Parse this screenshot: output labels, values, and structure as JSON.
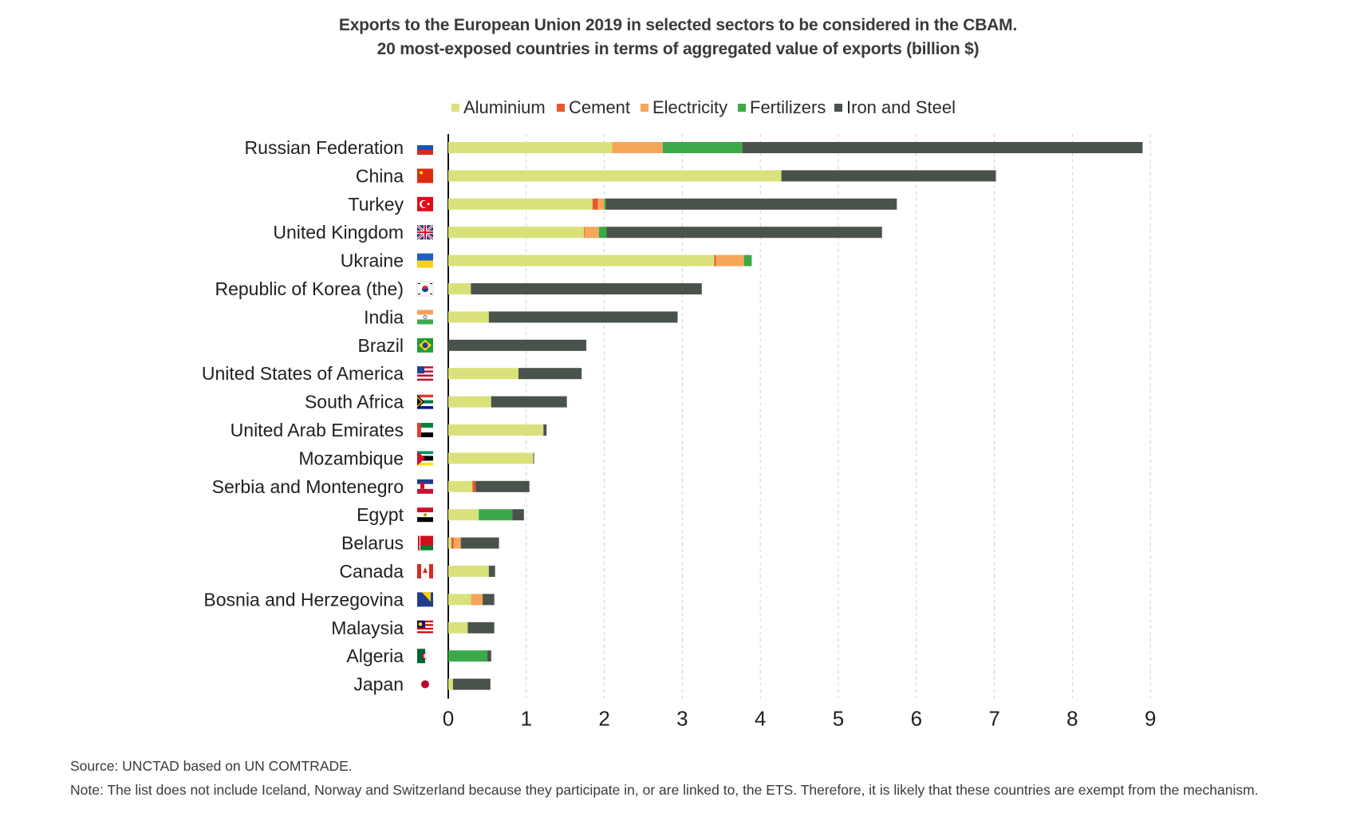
{
  "chart_data": {
    "type": "bar",
    "orientation": "horizontal",
    "stacked": true,
    "title": "Exports to the European Union 2019 in selected sectors to be considered in the CBAM.",
    "subtitle": "20 most-exposed countries in terms of aggregated value of exports (billion $)",
    "xlim": [
      0,
      9
    ],
    "xticks": [
      "0",
      "1",
      "2",
      "3",
      "4",
      "5",
      "6",
      "7",
      "8",
      "9"
    ],
    "grid": "vertical dashed",
    "legend_position": "top",
    "categories": [
      "Russian Federation",
      "China",
      "Turkey",
      "United Kingdom",
      "Ukraine",
      "Republic of Korea (the)",
      "India",
      "Brazil",
      "United States of America",
      "South Africa",
      "United Arab Emirates",
      "Mozambique",
      "Serbia and Montenegro",
      "Egypt",
      "Belarus",
      "Canada",
      "Bosnia and Herzegovina",
      "Malaysia",
      "Algeria",
      "Japan"
    ],
    "series": [
      {
        "name": "Aluminium",
        "color": "#d9e27a",
        "values": [
          2.1,
          4.27,
          1.85,
          1.74,
          3.41,
          0.29,
          0.52,
          0.0,
          0.9,
          0.55,
          1.22,
          1.09,
          0.31,
          0.39,
          0.04,
          0.52,
          0.29,
          0.25,
          0.0,
          0.06
        ]
      },
      {
        "name": "Cement",
        "color": "#e8582a",
        "values": [
          0.0,
          0.0,
          0.07,
          0.01,
          0.02,
          0.0,
          0.0,
          0.0,
          0.0,
          0.0,
          0.0,
          0.0,
          0.04,
          0.0,
          0.03,
          0.0,
          0.0,
          0.0,
          0.0,
          0.0
        ]
      },
      {
        "name": "Electricity",
        "color": "#f5a65b",
        "values": [
          0.65,
          0.0,
          0.08,
          0.18,
          0.36,
          0.0,
          0.0,
          0.0,
          0.0,
          0.0,
          0.0,
          0.0,
          0.0,
          0.0,
          0.09,
          0.0,
          0.15,
          0.0,
          0.0,
          0.0
        ]
      },
      {
        "name": "Fertilizers",
        "color": "#3aaa48",
        "values": [
          1.02,
          0.0,
          0.02,
          0.1,
          0.1,
          0.0,
          0.0,
          0.0,
          0.0,
          0.0,
          0.0,
          0.0,
          0.0,
          0.43,
          0.0,
          0.0,
          0.0,
          0.0,
          0.5,
          0.0
        ]
      },
      {
        "name": "Iron and Steel",
        "color": "#4a524c",
        "values": [
          5.13,
          2.75,
          3.73,
          3.53,
          0.0,
          2.96,
          2.42,
          1.77,
          0.81,
          0.97,
          0.04,
          0.01,
          0.69,
          0.15,
          0.49,
          0.08,
          0.15,
          0.34,
          0.05,
          0.48
        ]
      }
    ],
    "flags": [
      "russia",
      "china",
      "turkey",
      "uk",
      "ukraine",
      "korea",
      "india",
      "brazil",
      "usa",
      "south-africa",
      "uae",
      "mozambique",
      "serbia-montenegro",
      "egypt",
      "belarus",
      "canada",
      "bosnia",
      "malaysia",
      "algeria",
      "japan"
    ]
  },
  "footer": {
    "source": "Source: UNCTAD based on UN COMTRADE.",
    "note": "Note: The list does not include Iceland, Norway and Switzerland because they participate in, or are linked to, the ETS. Therefore, it is likely that these countries are exempt from the mechanism."
  }
}
